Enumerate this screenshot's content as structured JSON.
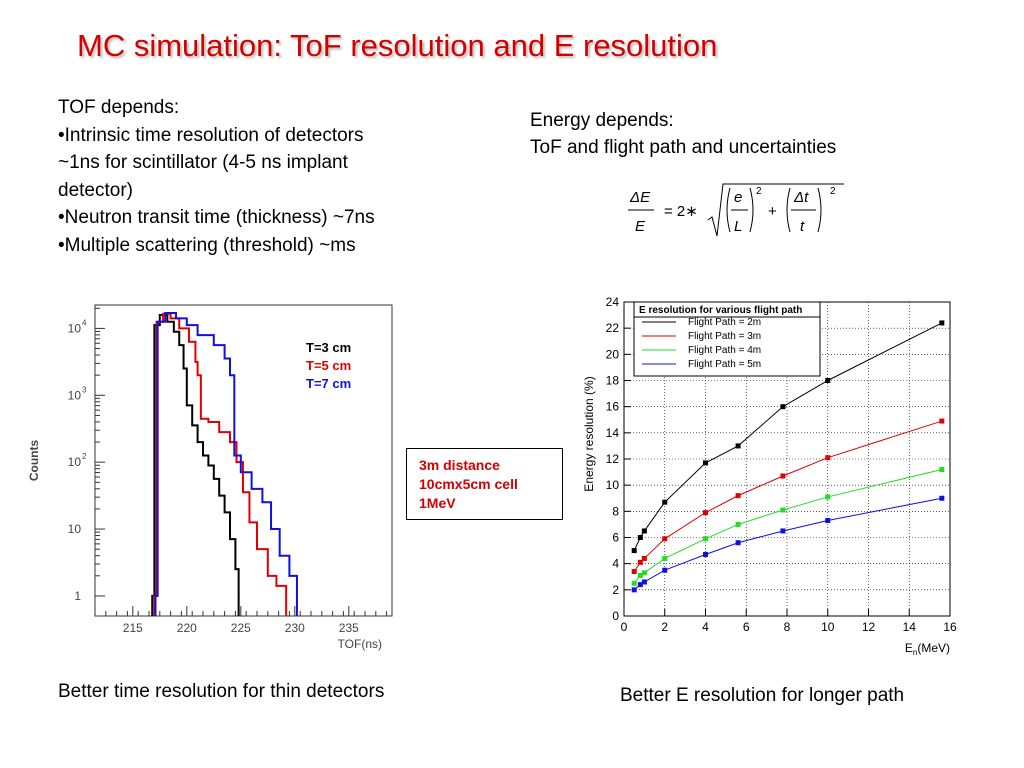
{
  "title": "MC simulation: ToF resolution and E resolution",
  "tof_text": {
    "heading": "TOF depends:",
    "lines": [
      "•Intrinsic time resolution of detectors",
      "~1ns for scintillator (4-5 ns implant",
      "detector)",
      "•Neutron transit time (thickness) ~7ns",
      "•Multiple scattering (threshold)  ~ms"
    ]
  },
  "energy_text": {
    "heading": "Energy depends:",
    "line": "ToF and flight path and uncertainties"
  },
  "formula": {
    "lhs_num": "ΔE",
    "lhs_den": "E",
    "equals": "= 2∗",
    "f1_num": "e",
    "f1_den": "L",
    "plus": "+",
    "f2_num": "Δt",
    "f2_den": "t",
    "exp": "2"
  },
  "infobox": [
    "3m distance",
    "10cmx5cm cell",
    "1MeV"
  ],
  "caption_left": "Better time resolution for thin detectors",
  "caption_right": "Better E resolution for longer path",
  "colors": {
    "title": "#d40000",
    "black": "#000000",
    "red": "#e00000",
    "green": "#22dd22",
    "blue": "#1010e0"
  },
  "chart_data": [
    {
      "type": "line",
      "ylabel": "Counts",
      "xlabel": "TOF(ns)",
      "xlim": [
        211.5,
        239
      ],
      "ylim_log10": [
        -0.3,
        4.35
      ],
      "x_ticks": [
        215,
        220,
        225,
        230,
        235
      ],
      "y_tick_labels": [
        "10",
        "10",
        "10",
        "10",
        "1"
      ],
      "y_tick_exponents": [
        "4",
        "3",
        "2",
        "",
        ""
      ],
      "y_tick_values_log10": [
        4,
        3,
        2,
        1,
        0
      ],
      "legend": [
        "T=3 cm",
        "T=5 cm",
        "T=7 cm"
      ],
      "series": [
        {
          "name": "T=3 cm",
          "color": "#000000",
          "points": [
            [
              216.8,
              0
            ],
            [
              217.0,
              4.05
            ],
            [
              217.5,
              4.2
            ],
            [
              218.2,
              4.1
            ],
            [
              218.8,
              3.95
            ],
            [
              219.3,
              3.75
            ],
            [
              219.7,
              3.4
            ],
            [
              220.0,
              2.85
            ],
            [
              220.5,
              2.55
            ],
            [
              221.0,
              2.3
            ],
            [
              221.5,
              2.1
            ],
            [
              222.0,
              1.95
            ],
            [
              222.5,
              1.75
            ],
            [
              223.0,
              1.5
            ],
            [
              223.5,
              1.25
            ],
            [
              224.0,
              0.85
            ],
            [
              224.5,
              0.4
            ],
            [
              224.8,
              0
            ]
          ]
        },
        {
          "name": "T=5 cm",
          "color": "#e00000",
          "points": [
            [
              217.0,
              0
            ],
            [
              217.2,
              4.1
            ],
            [
              217.8,
              4.22
            ],
            [
              218.5,
              4.15
            ],
            [
              219.3,
              4.0
            ],
            [
              220.2,
              3.8
            ],
            [
              220.8,
              3.5
            ],
            [
              221.0,
              3.3
            ],
            [
              221.3,
              2.65
            ],
            [
              222.0,
              2.6
            ],
            [
              223.0,
              2.45
            ],
            [
              224.0,
              2.3
            ],
            [
              224.6,
              2.0
            ],
            [
              225.2,
              1.55
            ],
            [
              225.8,
              1.1
            ],
            [
              226.5,
              0.7
            ],
            [
              227.5,
              0.3
            ],
            [
              228.3,
              0.15
            ],
            [
              229.2,
              0
            ]
          ]
        },
        {
          "name": "T=7 cm",
          "color": "#1010e0",
          "points": [
            [
              217.1,
              0
            ],
            [
              217.3,
              4.1
            ],
            [
              218.0,
              4.23
            ],
            [
              219.0,
              4.15
            ],
            [
              220.0,
              4.05
            ],
            [
              221.0,
              3.9
            ],
            [
              222.5,
              3.75
            ],
            [
              223.5,
              3.55
            ],
            [
              224.0,
              3.3
            ],
            [
              224.4,
              2.1
            ],
            [
              225.0,
              1.85
            ],
            [
              226.0,
              1.6
            ],
            [
              227.0,
              1.4
            ],
            [
              227.8,
              1.0
            ],
            [
              228.6,
              0.6
            ],
            [
              229.5,
              0.3
            ],
            [
              230.2,
              0
            ]
          ]
        }
      ]
    },
    {
      "type": "line",
      "title": "E resolution for various flight path",
      "ylabel": "Energy resolution (%)",
      "xlabel": "E",
      "xlabel_sub": "n",
      "xlabel_suffix": "(MeV)",
      "xlim": [
        0,
        16
      ],
      "ylim": [
        0,
        24
      ],
      "x_ticks": [
        0,
        2,
        4,
        6,
        8,
        10,
        12,
        14,
        16
      ],
      "y_ticks": [
        0,
        2,
        4,
        6,
        8,
        10,
        12,
        14,
        16,
        18,
        20,
        22,
        24
      ],
      "grid": true,
      "legend_position": "top-left",
      "x": [
        0.5,
        0.8,
        1.0,
        2.0,
        4.0,
        5.6,
        7.8,
        10.0,
        15.6
      ],
      "series": [
        {
          "name": "Flight Path = 2m",
          "color": "#000000",
          "values": [
            5.0,
            6.0,
            6.5,
            8.7,
            11.7,
            13.0,
            16.0,
            18.0,
            22.4
          ]
        },
        {
          "name": "Flight Path = 3m",
          "color": "#e00000",
          "values": [
            3.4,
            4.1,
            4.4,
            5.9,
            7.9,
            9.2,
            10.7,
            12.1,
            14.9
          ]
        },
        {
          "name": "Flight Path = 4m",
          "color": "#22dd22",
          "values": [
            2.5,
            3.1,
            3.3,
            4.4,
            5.9,
            7.0,
            8.1,
            9.1,
            11.2
          ]
        },
        {
          "name": "Flight Path = 5m",
          "color": "#1010e0",
          "values": [
            2.0,
            2.4,
            2.6,
            3.5,
            4.7,
            5.6,
            6.5,
            7.3,
            9.0
          ]
        }
      ]
    }
  ]
}
